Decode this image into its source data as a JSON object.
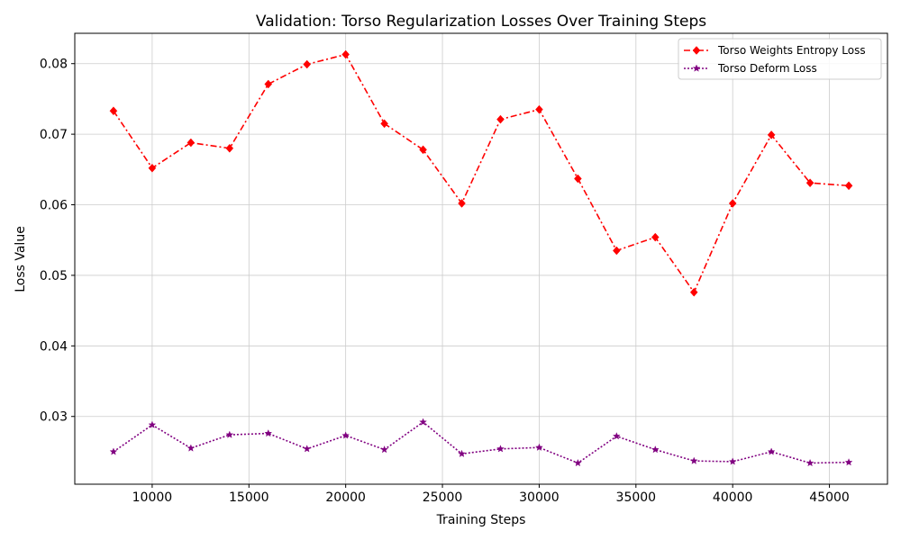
{
  "chart_data": {
    "type": "line",
    "title": "Validation: Torso Regularization Losses Over Training Steps",
    "xlabel": "Training Steps",
    "ylabel": "Loss Value",
    "x": [
      8000,
      10000,
      12000,
      14000,
      16000,
      18000,
      20000,
      22000,
      24000,
      26000,
      28000,
      30000,
      32000,
      34000,
      36000,
      38000,
      40000,
      42000,
      44000,
      46000
    ],
    "xlim": [
      6000,
      48000
    ],
    "ylim": [
      0.0204,
      0.0843
    ],
    "xticks": [
      10000,
      15000,
      20000,
      25000,
      30000,
      35000,
      40000,
      45000
    ],
    "yticks": [
      0.03,
      0.04,
      0.05,
      0.06,
      0.07,
      0.08
    ],
    "xtick_labels": [
      "10000",
      "15000",
      "20000",
      "25000",
      "30000",
      "35000",
      "40000",
      "45000"
    ],
    "ytick_labels": [
      "0.03",
      "0.04",
      "0.05",
      "0.06",
      "0.07",
      "0.08"
    ],
    "grid": true,
    "legend_position": "top-right",
    "series": [
      {
        "name": "Torso Weights Entropy Loss",
        "color": "#ff0000",
        "line_style": "dashdot",
        "marker": "diamond",
        "values": [
          0.0733,
          0.0652,
          0.0688,
          0.068,
          0.0771,
          0.0799,
          0.0813,
          0.0715,
          0.0678,
          0.0602,
          0.0721,
          0.0735,
          0.0637,
          0.0535,
          0.0554,
          0.0476,
          0.0602,
          0.0699,
          0.0631,
          0.0627
        ]
      },
      {
        "name": "Torso Deform Loss",
        "color": "#800080",
        "line_style": "dotted",
        "marker": "star",
        "values": [
          0.025,
          0.0288,
          0.0255,
          0.0274,
          0.0276,
          0.0254,
          0.0273,
          0.0253,
          0.0292,
          0.0247,
          0.0254,
          0.0256,
          0.0234,
          0.0272,
          0.0253,
          0.0237,
          0.0236,
          0.025,
          0.0234,
          0.0235
        ]
      }
    ]
  }
}
